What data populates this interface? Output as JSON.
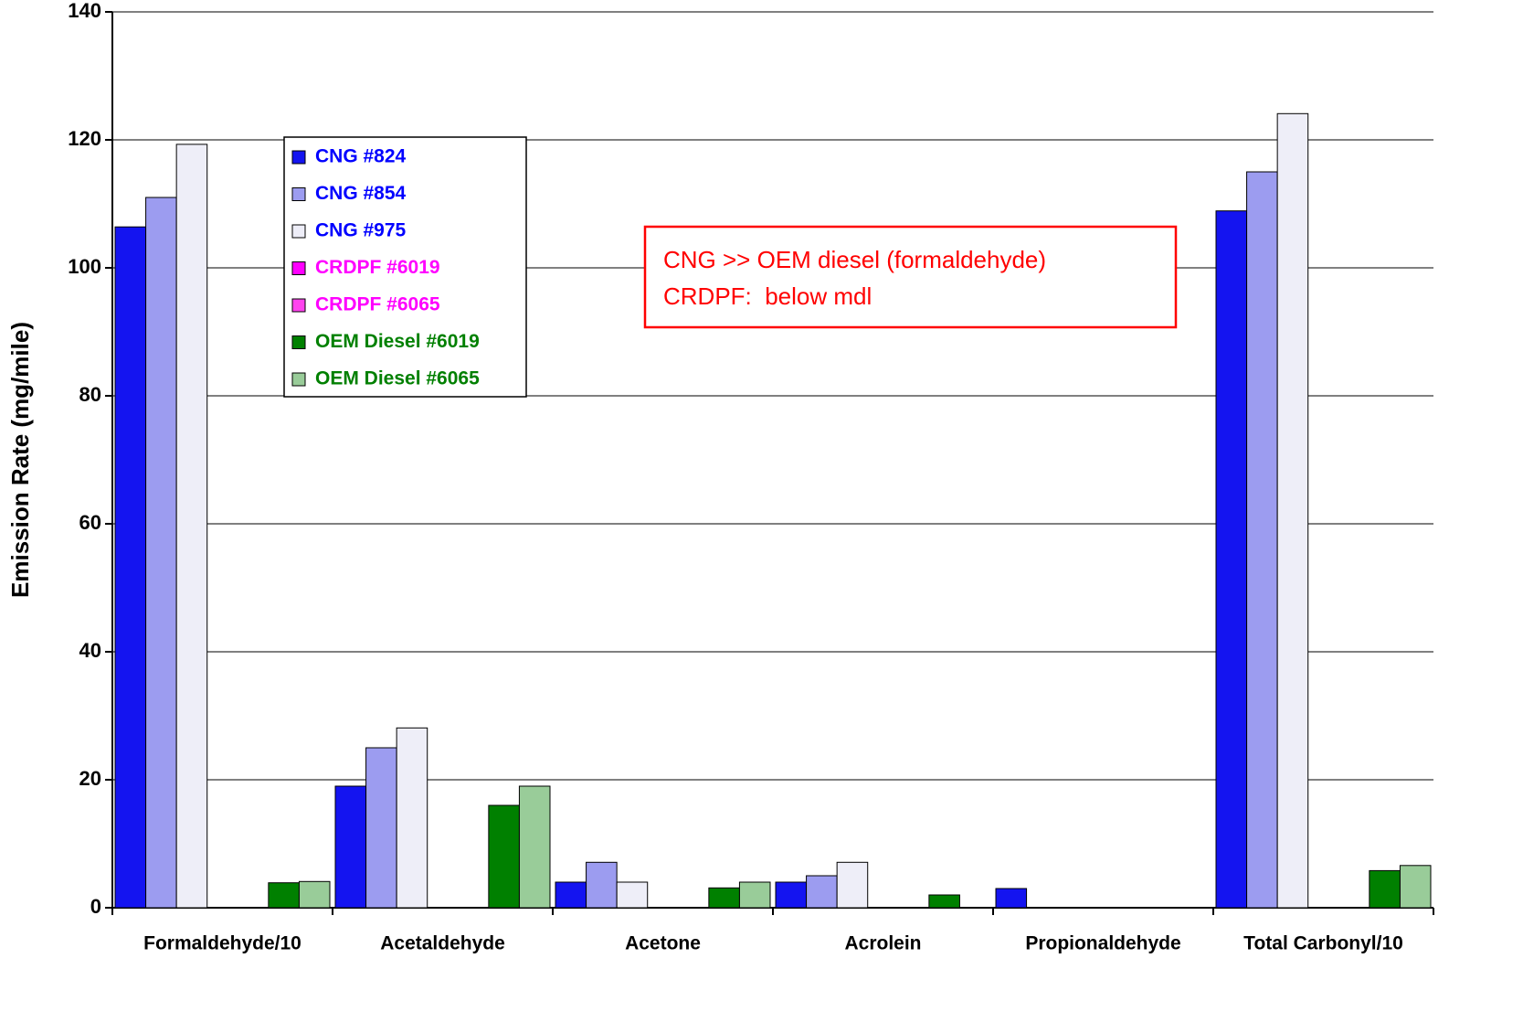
{
  "chart_data": {
    "type": "bar",
    "y_label": "Emission Rate (mg/mile)",
    "categories": [
      "Formaldehyde/10",
      "Acetaldehyde",
      "Acetone",
      "Acrolein",
      "Propionaldehyde",
      "Total Carbonyl/10"
    ],
    "series": [
      {
        "name": "CNG #824",
        "color": "#1414f0",
        "label_color": "#0000ff",
        "values": [
          106.4,
          19,
          4,
          4,
          3,
          108.9
        ]
      },
      {
        "name": "CNG #854",
        "color": "#9c9cf0",
        "label_color": "#0000ff",
        "values": [
          111,
          25,
          7.1,
          5,
          0,
          115
        ]
      },
      {
        "name": "CNG #975",
        "color": "#eeeef8",
        "label_color": "#0000ff",
        "values": [
          119.3,
          28.1,
          4,
          7.1,
          0,
          124.1
        ]
      },
      {
        "name": "CRDPF #6019",
        "color": "#ff00ff",
        "label_color": "#ff00ff",
        "values": [
          0,
          0,
          0,
          0,
          0,
          0
        ]
      },
      {
        "name": "CRDPF #6065",
        "color": "#ff44ee",
        "label_color": "#ff00ff",
        "values": [
          0,
          0,
          0,
          0,
          0,
          0
        ]
      },
      {
        "name": "OEM Diesel #6019",
        "color": "#008000",
        "label_color": "#008000",
        "values": [
          3.9,
          16,
          3.1,
          2,
          0,
          5.8
        ]
      },
      {
        "name": "OEM Diesel #6065",
        "color": "#99cc99",
        "label_color": "#008000",
        "values": [
          4.1,
          19,
          4,
          0,
          0,
          6.6
        ]
      }
    ],
    "ylim": [
      0,
      140
    ],
    "yticks": [
      0,
      20,
      40,
      60,
      80,
      100,
      120,
      140
    ],
    "grid": true,
    "annotations": [
      "CNG >> OEM diesel (formaldehyde)",
      "CRDPF:  below mdl"
    ],
    "annotation_color": "#ff0000"
  }
}
